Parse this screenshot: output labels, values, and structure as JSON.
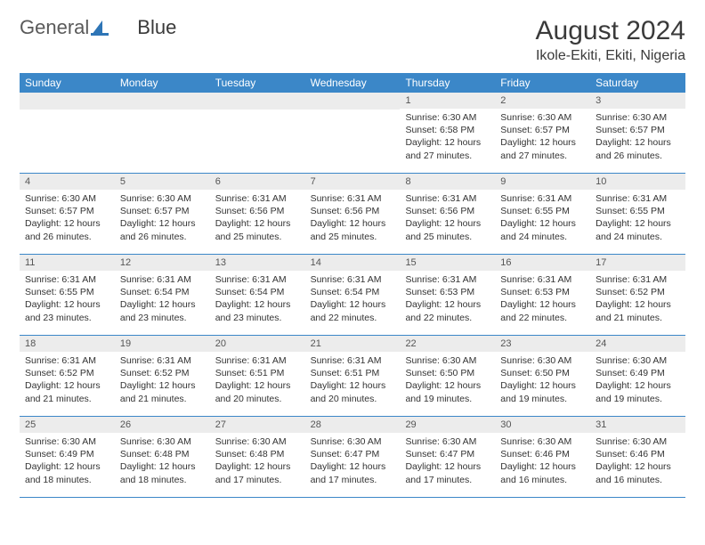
{
  "logo": {
    "text1": "General",
    "text2": "Blue"
  },
  "title": "August 2024",
  "location": "Ikole-Ekiti, Ekiti, Nigeria",
  "colors": {
    "header_bg": "#3b87c8",
    "header_text": "#ffffff",
    "daynum_bg": "#ececec",
    "border": "#3b87c8",
    "logo_accent": "#2e75b6"
  },
  "weekdays": [
    "Sunday",
    "Monday",
    "Tuesday",
    "Wednesday",
    "Thursday",
    "Friday",
    "Saturday"
  ],
  "weeks": [
    [
      {
        "n": "",
        "sunrise": "",
        "sunset": "",
        "daylight": ""
      },
      {
        "n": "",
        "sunrise": "",
        "sunset": "",
        "daylight": ""
      },
      {
        "n": "",
        "sunrise": "",
        "sunset": "",
        "daylight": ""
      },
      {
        "n": "",
        "sunrise": "",
        "sunset": "",
        "daylight": ""
      },
      {
        "n": "1",
        "sunrise": "Sunrise: 6:30 AM",
        "sunset": "Sunset: 6:58 PM",
        "daylight": "Daylight: 12 hours and 27 minutes."
      },
      {
        "n": "2",
        "sunrise": "Sunrise: 6:30 AM",
        "sunset": "Sunset: 6:57 PM",
        "daylight": "Daylight: 12 hours and 27 minutes."
      },
      {
        "n": "3",
        "sunrise": "Sunrise: 6:30 AM",
        "sunset": "Sunset: 6:57 PM",
        "daylight": "Daylight: 12 hours and 26 minutes."
      }
    ],
    [
      {
        "n": "4",
        "sunrise": "Sunrise: 6:30 AM",
        "sunset": "Sunset: 6:57 PM",
        "daylight": "Daylight: 12 hours and 26 minutes."
      },
      {
        "n": "5",
        "sunrise": "Sunrise: 6:30 AM",
        "sunset": "Sunset: 6:57 PM",
        "daylight": "Daylight: 12 hours and 26 minutes."
      },
      {
        "n": "6",
        "sunrise": "Sunrise: 6:31 AM",
        "sunset": "Sunset: 6:56 PM",
        "daylight": "Daylight: 12 hours and 25 minutes."
      },
      {
        "n": "7",
        "sunrise": "Sunrise: 6:31 AM",
        "sunset": "Sunset: 6:56 PM",
        "daylight": "Daylight: 12 hours and 25 minutes."
      },
      {
        "n": "8",
        "sunrise": "Sunrise: 6:31 AM",
        "sunset": "Sunset: 6:56 PM",
        "daylight": "Daylight: 12 hours and 25 minutes."
      },
      {
        "n": "9",
        "sunrise": "Sunrise: 6:31 AM",
        "sunset": "Sunset: 6:55 PM",
        "daylight": "Daylight: 12 hours and 24 minutes."
      },
      {
        "n": "10",
        "sunrise": "Sunrise: 6:31 AM",
        "sunset": "Sunset: 6:55 PM",
        "daylight": "Daylight: 12 hours and 24 minutes."
      }
    ],
    [
      {
        "n": "11",
        "sunrise": "Sunrise: 6:31 AM",
        "sunset": "Sunset: 6:55 PM",
        "daylight": "Daylight: 12 hours and 23 minutes."
      },
      {
        "n": "12",
        "sunrise": "Sunrise: 6:31 AM",
        "sunset": "Sunset: 6:54 PM",
        "daylight": "Daylight: 12 hours and 23 minutes."
      },
      {
        "n": "13",
        "sunrise": "Sunrise: 6:31 AM",
        "sunset": "Sunset: 6:54 PM",
        "daylight": "Daylight: 12 hours and 23 minutes."
      },
      {
        "n": "14",
        "sunrise": "Sunrise: 6:31 AM",
        "sunset": "Sunset: 6:54 PM",
        "daylight": "Daylight: 12 hours and 22 minutes."
      },
      {
        "n": "15",
        "sunrise": "Sunrise: 6:31 AM",
        "sunset": "Sunset: 6:53 PM",
        "daylight": "Daylight: 12 hours and 22 minutes."
      },
      {
        "n": "16",
        "sunrise": "Sunrise: 6:31 AM",
        "sunset": "Sunset: 6:53 PM",
        "daylight": "Daylight: 12 hours and 22 minutes."
      },
      {
        "n": "17",
        "sunrise": "Sunrise: 6:31 AM",
        "sunset": "Sunset: 6:52 PM",
        "daylight": "Daylight: 12 hours and 21 minutes."
      }
    ],
    [
      {
        "n": "18",
        "sunrise": "Sunrise: 6:31 AM",
        "sunset": "Sunset: 6:52 PM",
        "daylight": "Daylight: 12 hours and 21 minutes."
      },
      {
        "n": "19",
        "sunrise": "Sunrise: 6:31 AM",
        "sunset": "Sunset: 6:52 PM",
        "daylight": "Daylight: 12 hours and 21 minutes."
      },
      {
        "n": "20",
        "sunrise": "Sunrise: 6:31 AM",
        "sunset": "Sunset: 6:51 PM",
        "daylight": "Daylight: 12 hours and 20 minutes."
      },
      {
        "n": "21",
        "sunrise": "Sunrise: 6:31 AM",
        "sunset": "Sunset: 6:51 PM",
        "daylight": "Daylight: 12 hours and 20 minutes."
      },
      {
        "n": "22",
        "sunrise": "Sunrise: 6:30 AM",
        "sunset": "Sunset: 6:50 PM",
        "daylight": "Daylight: 12 hours and 19 minutes."
      },
      {
        "n": "23",
        "sunrise": "Sunrise: 6:30 AM",
        "sunset": "Sunset: 6:50 PM",
        "daylight": "Daylight: 12 hours and 19 minutes."
      },
      {
        "n": "24",
        "sunrise": "Sunrise: 6:30 AM",
        "sunset": "Sunset: 6:49 PM",
        "daylight": "Daylight: 12 hours and 19 minutes."
      }
    ],
    [
      {
        "n": "25",
        "sunrise": "Sunrise: 6:30 AM",
        "sunset": "Sunset: 6:49 PM",
        "daylight": "Daylight: 12 hours and 18 minutes."
      },
      {
        "n": "26",
        "sunrise": "Sunrise: 6:30 AM",
        "sunset": "Sunset: 6:48 PM",
        "daylight": "Daylight: 12 hours and 18 minutes."
      },
      {
        "n": "27",
        "sunrise": "Sunrise: 6:30 AM",
        "sunset": "Sunset: 6:48 PM",
        "daylight": "Daylight: 12 hours and 17 minutes."
      },
      {
        "n": "28",
        "sunrise": "Sunrise: 6:30 AM",
        "sunset": "Sunset: 6:47 PM",
        "daylight": "Daylight: 12 hours and 17 minutes."
      },
      {
        "n": "29",
        "sunrise": "Sunrise: 6:30 AM",
        "sunset": "Sunset: 6:47 PM",
        "daylight": "Daylight: 12 hours and 17 minutes."
      },
      {
        "n": "30",
        "sunrise": "Sunrise: 6:30 AM",
        "sunset": "Sunset: 6:46 PM",
        "daylight": "Daylight: 12 hours and 16 minutes."
      },
      {
        "n": "31",
        "sunrise": "Sunrise: 6:30 AM",
        "sunset": "Sunset: 6:46 PM",
        "daylight": "Daylight: 12 hours and 16 minutes."
      }
    ]
  ]
}
